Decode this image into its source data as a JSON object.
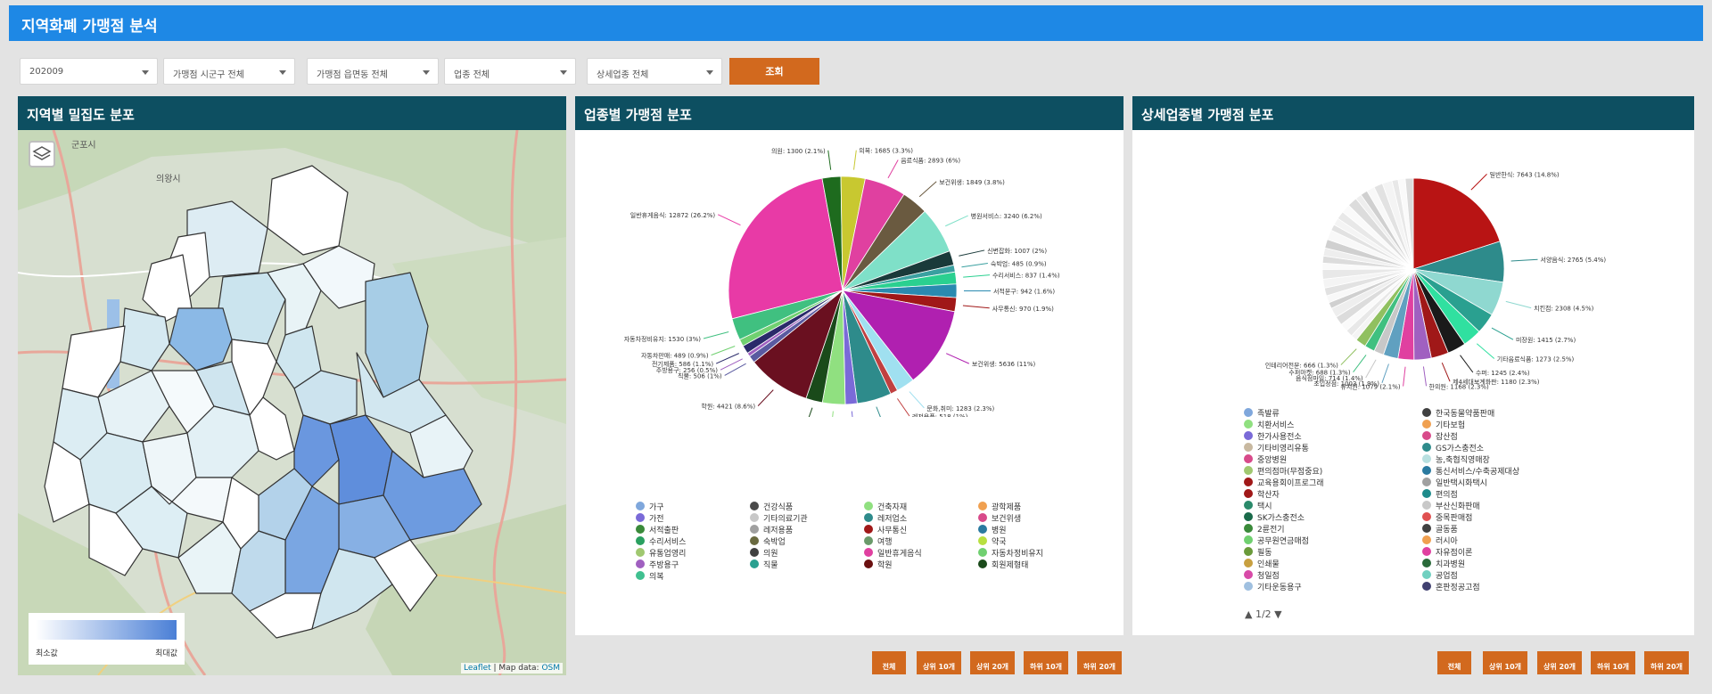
{
  "app": {
    "title": "지역화폐 가맹점 분석"
  },
  "filters": {
    "year": "202009",
    "district": "가맹점 시군구 전체",
    "dong": "가맹점 읍면동 전체",
    "category": "업종 전체",
    "subcategory": "상세업종 전체",
    "search_label": "조회"
  },
  "map": {
    "title": "지역별 밀집도 분포",
    "legend_min": "최소값",
    "legend_max": "최대값",
    "attribution_leaflet": "Leaflet",
    "attribution_sep": " | Map data: ",
    "attribution_osm": "OSM",
    "places": [
      "군포시",
      "의왕시"
    ],
    "accent": "#4a7fd6"
  },
  "pie1": {
    "title": "업종별 가맹점 분포",
    "legend": [
      {
        "label": "가구",
        "color": "#7fa7dc"
      },
      {
        "label": "건강식품",
        "color": "#4a4a4a"
      },
      {
        "label": "건축자재",
        "color": "#90e080"
      },
      {
        "label": "광학제품",
        "color": "#f0a050"
      },
      {
        "label": "가전",
        "color": "#7a6ad8"
      },
      {
        "label": "기타의료기관",
        "color": "#c8c8c8"
      },
      {
        "label": "레저업소",
        "color": "#2e8b8b"
      },
      {
        "label": "보건위생",
        "color": "#d84a8a"
      },
      {
        "label": "서적출판",
        "color": "#3a8a3a"
      },
      {
        "label": "레저용품",
        "color": "#a0a0a0"
      },
      {
        "label": "사무통신",
        "color": "#a01818"
      },
      {
        "label": "병원",
        "color": "#2a7aa0"
      },
      {
        "label": "수리서비스",
        "color": "#2aa060"
      },
      {
        "label": "숙박업",
        "color": "#6a6a40"
      },
      {
        "label": "여행",
        "color": "#6a9a6a"
      },
      {
        "label": "약국",
        "color": "#b8e040"
      },
      {
        "label": "유통업영리",
        "color": "#a0c870"
      },
      {
        "label": "의원",
        "color": "#404040"
      },
      {
        "label": "일반휴게음식",
        "color": "#e040a0"
      },
      {
        "label": "자동차정비유지",
        "color": "#70d070"
      },
      {
        "label": "주방용구",
        "color": "#a060c0"
      },
      {
        "label": "직물",
        "color": "#2aa090"
      },
      {
        "label": "학원",
        "color": "#6a1010"
      },
      {
        "label": "회원제형태",
        "color": "#1a4a1a"
      },
      {
        "label": "의복",
        "color": "#40c090"
      }
    ],
    "chart_data": {
      "type": "pie",
      "slices": [
        {
          "label": "일반휴게음식",
          "value": 12872,
          "pct": "26.2%",
          "color": "#e83aa6"
        },
        {
          "label": "의원",
          "value": 1300,
          "pct": "2.1%",
          "color": "#1e6b1e"
        },
        {
          "label": "의복",
          "value": 1685,
          "pct": "3.3%",
          "color": "#c8c830"
        },
        {
          "label": "음료식품",
          "value": 2893,
          "pct": "6%",
          "color": "#e040a0"
        },
        {
          "label": "보건위생",
          "value": 1849,
          "pct": "3.8%",
          "color": "#6a5a40"
        },
        {
          "label": "병원서비스",
          "value": 3240,
          "pct": "6.2%",
          "color": "#7fe0c8"
        },
        {
          "label": "신변잡화",
          "value": 1007,
          "pct": "2%",
          "color": "#1a3a3a"
        },
        {
          "label": "숙박업",
          "value": 485,
          "pct": "0.9%",
          "color": "#3aa0a0"
        },
        {
          "label": "수리서비스",
          "value": 837,
          "pct": "1.4%",
          "color": "#2ad090"
        },
        {
          "label": "서적문구",
          "value": 942,
          "pct": "1.6%",
          "color": "#2a8ab0"
        },
        {
          "label": "사무통신",
          "value": 970,
          "pct": "1.9%",
          "color": "#a01818"
        },
        {
          "label": "보건위생",
          "value": 5636,
          "pct": "11%",
          "color": "#b020b0"
        },
        {
          "label": "문화,취미",
          "value": 1283,
          "pct": "2.3%",
          "color": "#a0e0f0"
        },
        {
          "label": "레저용품",
          "value": 518,
          "pct": "1%",
          "color": "#c04040"
        },
        {
          "label": "레저업소",
          "value": 2404,
          "pct": "4.1%",
          "color": "#2e8b8b"
        },
        {
          "label": "가전",
          "value": 829,
          "pct": "1.6%",
          "color": "#7a6ad8"
        },
        {
          "label": "건축자재",
          "value": 1588,
          "pct": "3.1%",
          "color": "#90e080"
        },
        {
          "label": "회원제형태",
          "value": 1154,
          "pct": "2.2%",
          "color": "#1a4a1a"
        },
        {
          "label": "학원",
          "value": 4421,
          "pct": "8.6%",
          "color": "#6a1020"
        },
        {
          "label": "직물",
          "value": 506,
          "pct": "1%",
          "color": "#5a5aa0"
        },
        {
          "label": "주방용구",
          "value": 256,
          "pct": "0.5%",
          "color": "#a060c0"
        },
        {
          "label": "전기제품",
          "value": 586,
          "pct": "1.1%",
          "color": "#2a2a6a"
        },
        {
          "label": "자동차판매",
          "value": 489,
          "pct": "0.9%",
          "color": "#70d070"
        },
        {
          "label": "자동차정비유지",
          "value": 1530,
          "pct": "3%",
          "color": "#40c080"
        }
      ],
      "label_texts": [
        "회원제형태: 1154 (2.2%)",
        "학원: 4421 (8.6%)",
        "직물: 506 (1%)",
        "주방용구: 256 (0.5%)",
        "전기제품: 586 (1.1%)",
        "자동차판매: 489 (0.9%)",
        "자동차정비유지: 1530 (3%)",
        "일반휴게음식: 12872 (26.2%)",
        "의원: 1300 (2.1%)",
        "의복: 1685 (3.3%)",
        "건축자재: 1588 (3.1%)",
        "가전: 829 (1.6%)",
        "레저업소: 2404 (4.1%)",
        "레저용품: 518 (1%)",
        "문화,취미: 1283 (2.3%)",
        "보건위생: 5636 (11%)",
        "사무통신: 970 (1.9%)",
        "서적문구: 942 (1.6%)",
        "수리서비스: 837 (1.4%)",
        "숙박업: 485 (0.9%)",
        "신변잡화: 1007 (2%)",
        "병원서비스: 3240 (6.2%)",
        "보건위생: 1849 (3.8%)",
        "음료식품: 2893 (6%)"
      ]
    },
    "buttons": [
      "전체",
      "상위 10개",
      "상위 20개",
      "하위 10개",
      "하위 20개"
    ]
  },
  "pie2": {
    "title": "상세업종별 가맹점 분포",
    "pager": "▲ 1/2 ▼",
    "legend": [
      {
        "label": "족발류",
        "color": "#7fa7dc"
      },
      {
        "label": "한국동물약품판매",
        "color": "#404040"
      },
      {
        "label": "치환서비스",
        "color": "#90e080"
      },
      {
        "label": "기타보험",
        "color": "#f0a050"
      },
      {
        "label": "한가사용전소",
        "color": "#7a6ad8"
      },
      {
        "label": "잡산점",
        "color": "#d84a8a"
      },
      {
        "label": "기타비영리유통",
        "color": "#c8b8a0"
      },
      {
        "label": "GS가스충전소",
        "color": "#2e8b8b"
      },
      {
        "label": "중앙병원",
        "color": "#d84a8a"
      },
      {
        "label": "농,축협직영매장",
        "color": "#b8e0e0"
      },
      {
        "label": "편의점마(무점중요)",
        "color": "#a0c870"
      },
      {
        "label": "통신서비스/수축공제대상",
        "color": "#2a7aa0"
      },
      {
        "label": "교육용회이프로그래",
        "color": "#a01818"
      },
      {
        "label": "일반택시화택시",
        "color": "#a0a0a0"
      },
      {
        "label": "학산자",
        "color": "#a01818"
      },
      {
        "label": "편의점",
        "color": "#1e8b8b"
      },
      {
        "label": "택시",
        "color": "#2a8a6a"
      },
      {
        "label": "부산신화판매",
        "color": "#c8c8c8"
      },
      {
        "label": "SK가스충전소",
        "color": "#1a6a4a"
      },
      {
        "label": "중목판매점",
        "color": "#e05050"
      },
      {
        "label": "2륜전기",
        "color": "#3a8a3a"
      },
      {
        "label": "골동품",
        "color": "#404040"
      },
      {
        "label": "공무원연금매점",
        "color": "#70d070"
      },
      {
        "label": "러시아",
        "color": "#f0a050"
      },
      {
        "label": "필동",
        "color": "#6a9a3a"
      },
      {
        "label": "자유점이론",
        "color": "#e040a0"
      },
      {
        "label": "인쇄물",
        "color": "#c8a040"
      },
      {
        "label": "치과병원",
        "color": "#2a6a3a"
      },
      {
        "label": "청일점",
        "color": "#d84aa8"
      },
      {
        "label": "공업점",
        "color": "#70d0c0"
      },
      {
        "label": "기타운동용구",
        "color": "#a0c0e0"
      },
      {
        "label": "혼판정공고점",
        "color": "#404070"
      }
    ],
    "chart_data": {
      "type": "pie",
      "slices": [
        {
          "label": "일반한식",
          "value": 7643,
          "pct": "14.8%",
          "color": "#b81414"
        },
        {
          "label": "서양음식",
          "value": 2765,
          "pct": "5.4%",
          "color": "#2e8b8b"
        },
        {
          "label": "치킨점",
          "value": 2308,
          "pct": "4.5%",
          "color": "#8fd8d0"
        },
        {
          "label": "미장원",
          "value": 1415,
          "pct": "2.7%",
          "color": "#2aa090"
        },
        {
          "label": "기타음료식품",
          "value": 1273,
          "pct": "2.5%",
          "color": "#30e0a0"
        },
        {
          "label": "수퍼",
          "value": 1245,
          "pct": "2.4%",
          "color": "#1a1a1a"
        },
        {
          "label": "제4세대보계화판",
          "value": 1180,
          "pct": "2.3%",
          "color": "#a01818"
        },
        {
          "label": "한의원",
          "value": 1168,
          "pct": "2.3%",
          "color": "#a060c0"
        },
        {
          "label": "유치원",
          "value": 1079,
          "pct": "2.1%",
          "color": "#e040a0"
        },
        {
          "label": "초입정점",
          "value": 1003,
          "pct": "1.9%",
          "color": "#60a0c0"
        },
        {
          "label": "음식점마일",
          "value": 714,
          "pct": "1.4%",
          "color": "#90c060"
        },
        {
          "label": "수퍼마켓",
          "value": 688,
          "pct": "1.3%",
          "color": "#40c080"
        },
        {
          "label": "인테리어전문",
          "value": 666,
          "pct": "1.3%",
          "color": "#c8c8c8"
        }
      ],
      "label_texts": [
        "일반한식: 7643 (14.8%)",
        "서양음식: 2765 (5.4%)",
        "치킨점: 2308 (4.5%)",
        "미장원: 1415 (2.7%)",
        "기타음료식품: 1273 (2.5%)",
        "수퍼: 1245 (2.4%)",
        "제4세대보계화판: 1180 (2.3%)",
        "한의원: 1168 (2.3%)",
        "유치원: 1079 (2.1%)",
        "초입정점: 1003 (1.9%)",
        "인테리어전문: 666 (1.3%)",
        "수퍼마켓: 688 (1.3%)",
        "음식점마일: 714 (1.4%)"
      ]
    },
    "buttons": [
      "전체",
      "상위 10개",
      "상위 20개",
      "하위 10개",
      "하위 20개"
    ]
  }
}
